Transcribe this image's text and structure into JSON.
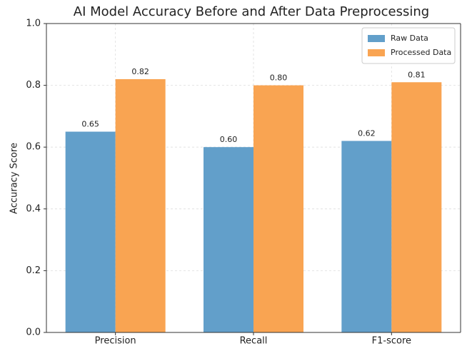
{
  "chart_data": {
    "type": "bar",
    "title": "AI Model Accuracy Before and After Data Preprocessing",
    "y_label": "Accuracy Score",
    "categories": [
      "Precision",
      "Recall",
      "F1-score"
    ],
    "series": [
      {
        "name": "Raw Data",
        "color": "#629fca",
        "values": [
          0.65,
          0.6,
          0.62
        ],
        "value_labels": [
          "0.65",
          "0.60",
          "0.62"
        ]
      },
      {
        "name": "Processed Data",
        "color": "#f9a452",
        "values": [
          0.82,
          0.8,
          0.81
        ],
        "value_labels": [
          "0.82",
          "0.80",
          "0.81"
        ]
      }
    ],
    "ylim": [
      0,
      1
    ],
    "yticks": [
      {
        "value": 0,
        "label": "0.0"
      },
      {
        "value": 0.2,
        "label": "0.2"
      },
      {
        "value": 0.4,
        "label": "0.4"
      },
      {
        "value": 0.6,
        "label": "0.6"
      },
      {
        "value": 0.8,
        "label": "0.8"
      },
      {
        "value": 1,
        "label": "1.0"
      }
    ],
    "grid": true,
    "legend": "upper right"
  }
}
